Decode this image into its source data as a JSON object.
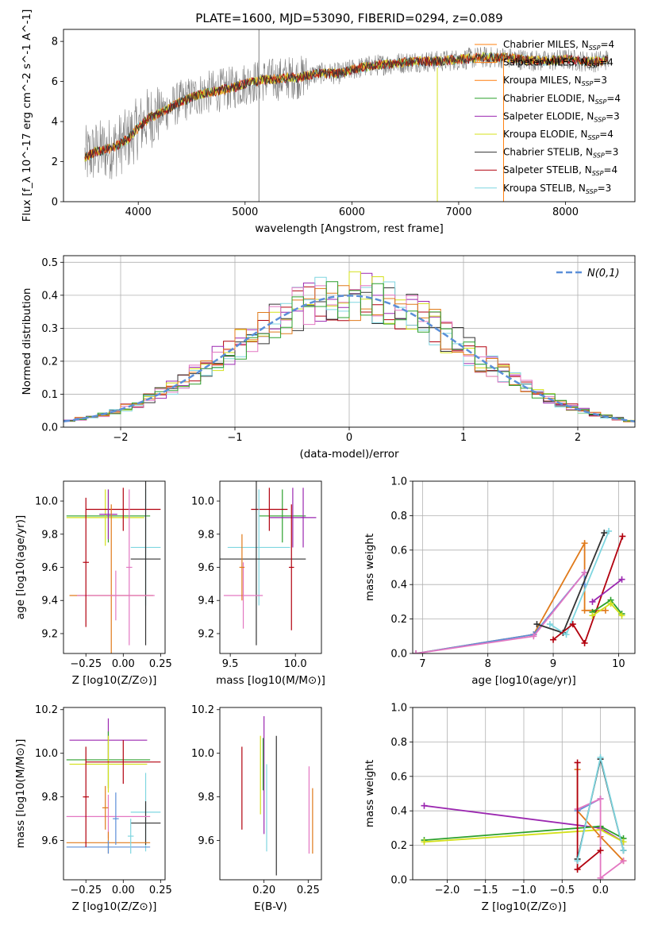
{
  "title": "PLATE=1600, MJD=53090, FIBERID=0294, z=0.089",
  "colors": {
    "Chabrier MILES": "#ff7f0e",
    "Salpeter MILES": "#ff7f0e",
    "Kroupa MILES": "#ff7f0e",
    "Chabrier ELODIE": "#2ca02c",
    "Salpeter ELODIE": "#9b27b0",
    "Kroupa ELODIE": "#d4e01a",
    "Chabrier STELIB": "#333333",
    "Salpeter STELIB": "#b2000e",
    "Kroupa STELIB": "#7fd6e0",
    "extra_pink": "#e377c2",
    "extra_blue": "#5b8fd8",
    "extra_orange": "#e07a1a",
    "data_grey": "#808080",
    "normal_curve": "#5b8fd8"
  },
  "chart_data": [
    {
      "id": "spectrum",
      "type": "line",
      "title": "PLATE=1600, MJD=53090, FIBERID=0294, z=0.089",
      "xlabel": "wavelength [Angstrom, rest frame]",
      "ylabel": "Flux [f_λ 10^-17 erg cm^-2 s^-1 A^-1]",
      "xlim": [
        3300,
        8650
      ],
      "ylim": [
        0,
        8.6
      ],
      "xticks": [
        "4000",
        "5000",
        "6000",
        "7000",
        "8000"
      ],
      "yticks": [
        "0",
        "2",
        "4",
        "6",
        "8"
      ],
      "model_knots_x": [
        3500,
        3600,
        3700,
        3800,
        3900,
        4000,
        4100,
        4200,
        4300,
        4400,
        4500,
        4600,
        4700,
        4800,
        4900,
        5000,
        5100,
        5200,
        5300,
        5400,
        5500,
        5600,
        5700,
        5800,
        5900,
        6000,
        6200,
        6400,
        6600,
        6800,
        7000,
        7200,
        7400,
        7600,
        7800,
        8000,
        8200,
        8300,
        8400
      ],
      "model_knots_y": [
        2.2,
        2.5,
        2.6,
        2.8,
        3.1,
        3.7,
        4.2,
        4.4,
        4.7,
        5.0,
        5.2,
        5.4,
        5.5,
        5.6,
        5.7,
        5.9,
        6.0,
        6.1,
        6.1,
        6.2,
        6.2,
        6.3,
        6.4,
        6.4,
        6.4,
        6.6,
        6.8,
        6.9,
        7.0,
        7.0,
        7.1,
        7.2,
        7.2,
        7.1,
        7.0,
        7.1,
        7.0,
        7.0,
        7.1
      ],
      "legend": [
        {
          "label": "Chabrier MILES, N",
          "sub": "SSP",
          "suffix": "=4"
        },
        {
          "label": "Salpeter MILES, N",
          "sub": "SSP",
          "suffix": "=4"
        },
        {
          "label": "Kroupa MILES, N",
          "sub": "SSP",
          "suffix": "=3"
        },
        {
          "label": "Chabrier ELODIE, N",
          "sub": "SSP",
          "suffix": "=4"
        },
        {
          "label": "Salpeter ELODIE, N",
          "sub": "SSP",
          "suffix": "=3"
        },
        {
          "label": "Kroupa ELODIE, N",
          "sub": "SSP",
          "suffix": "=4"
        },
        {
          "label": "Chabrier STELIB, N",
          "sub": "SSP",
          "suffix": "=3"
        },
        {
          "label": "Salpeter STELIB, N",
          "sub": "SSP",
          "suffix": "=4"
        },
        {
          "label": "Kroupa STELIB, N",
          "sub": "SSP",
          "suffix": "=3"
        }
      ],
      "legend_position": "top-right"
    },
    {
      "id": "residuals",
      "type": "histogram",
      "xlabel": "(data-model)/error",
      "ylabel": "Normed distribution",
      "xlim": [
        -2.5,
        2.5
      ],
      "ylim": [
        0,
        0.52
      ],
      "xticks": [
        "−2",
        "−1",
        "0",
        "1",
        "2"
      ],
      "yticks": [
        "0.0",
        "0.1",
        "0.2",
        "0.3",
        "0.4",
        "0.5"
      ],
      "grid": true,
      "bin_width": 0.1,
      "normal_label": "N(0,1)",
      "legend_position": "top-right"
    },
    {
      "id": "age_vs_Z",
      "type": "errorbar",
      "xlabel": "Z [log10(Z/Z⊙)]",
      "ylabel": "age [log10(age/yr)]",
      "xlim": [
        -0.4,
        0.28
      ],
      "ylim": [
        9.08,
        10.12
      ],
      "xticks": [
        "−0.25",
        "0.00",
        "0.25"
      ],
      "yticks": [
        "9.2",
        "9.4",
        "9.6",
        "9.8",
        "10.0"
      ],
      "bars": [
        {
          "x": -0.1,
          "y": 9.91,
          "xerr": 0.28,
          "yerr": 0.16,
          "color": "Chabrier ELODIE"
        },
        {
          "x": -0.12,
          "y": 9.9,
          "xerr": 0.26,
          "yerr": 0.17,
          "color": "Kroupa ELODIE"
        },
        {
          "x": 0.0,
          "y": 9.95,
          "xerr": 0.25,
          "yerr": 0.13,
          "color": "Salpeter STELIB"
        },
        {
          "x": -0.1,
          "y": 9.92,
          "xerr": 0.06,
          "yerr": 0.15,
          "color": "Salpeter ELODIE"
        },
        {
          "x": 0.15,
          "y": 9.72,
          "xerr": 0.1,
          "yerr": 0.35,
          "color": "Kroupa STELIB"
        },
        {
          "x": 0.15,
          "y": 9.65,
          "xerr": 0.1,
          "yerr": 0.52,
          "color": "Chabrier STELIB"
        },
        {
          "x": -0.08,
          "y": 9.43,
          "xerr": 0.28,
          "yerr": 0.55,
          "color": "extra_orange"
        },
        {
          "x": -0.05,
          "y": 9.43,
          "xerr": 0.26,
          "yerr": 0.15,
          "color": "extra_pink"
        },
        {
          "x": -0.25,
          "y": 9.63,
          "xerr": 0.02,
          "yerr": 0.39,
          "color": "Salpeter STELIB"
        },
        {
          "x": 0.04,
          "y": 9.6,
          "xerr": 0.02,
          "yerr": 0.47,
          "color": "extra_pink"
        }
      ]
    },
    {
      "id": "age_vs_mass",
      "type": "errorbar",
      "xlabel": "mass [log10(M/M⊙)]",
      "ylabel": "",
      "xlim": [
        9.42,
        10.2
      ],
      "ylim": [
        9.08,
        10.12
      ],
      "xticks": [
        "9.5",
        "10.0"
      ],
      "yticks": [
        "9.2",
        "9.4",
        "9.6",
        "9.8",
        "10.0"
      ],
      "bars": [
        {
          "x": 9.9,
          "y": 9.91,
          "xerr": 0.18,
          "yerr": 0.16,
          "color": "Chabrier ELODIE"
        },
        {
          "x": 9.98,
          "y": 9.9,
          "xerr": 0.18,
          "yerr": 0.18,
          "color": "Salpeter ELODIE"
        },
        {
          "x": 9.8,
          "y": 9.95,
          "xerr": 0.14,
          "yerr": 0.13,
          "color": "Salpeter STELIB"
        },
        {
          "x": 9.72,
          "y": 9.72,
          "xerr": 0.24,
          "yerr": 0.35,
          "color": "Kroupa STELIB"
        },
        {
          "x": 9.7,
          "y": 9.65,
          "xerr": 0.38,
          "yerr": 0.52,
          "color": "Chabrier STELIB"
        },
        {
          "x": 9.6,
          "y": 9.43,
          "xerr": 0.15,
          "yerr": 0.2,
          "color": "extra_pink"
        },
        {
          "x": 9.59,
          "y": 9.6,
          "xerr": 0.02,
          "yerr": 0.2,
          "color": "extra_orange"
        },
        {
          "x": 10.06,
          "y": 9.9,
          "xerr": 0.02,
          "yerr": 0.18,
          "color": "Salpeter ELODIE"
        },
        {
          "x": 9.97,
          "y": 9.6,
          "xerr": 0.02,
          "yerr": 0.38,
          "color": "Salpeter STELIB"
        }
      ]
    },
    {
      "id": "mw_vs_age",
      "type": "line",
      "xlabel": "age [log10(age/yr)]",
      "ylabel": "mass weight",
      "xlim": [
        6.85,
        10.25
      ],
      "ylim": [
        0,
        1.0
      ],
      "xticks": [
        "7",
        "8",
        "9",
        "10"
      ],
      "yticks": [
        "0.0",
        "0.2",
        "0.4",
        "0.6",
        "0.8",
        "1.0"
      ],
      "grid": true,
      "series": [
        {
          "color": "extra_orange",
          "x": [
            6.9,
            8.7,
            9.48,
            9.48,
            9.8
          ],
          "y": [
            0.0,
            0.11,
            0.64,
            0.25,
            0.25
          ]
        },
        {
          "color": "extra_blue",
          "x": [
            6.9,
            8.7,
            9.48,
            9.48
          ],
          "y": [
            0.0,
            0.11,
            0.47,
            0.4
          ]
        },
        {
          "color": "extra_pink",
          "x": [
            6.9,
            8.7,
            9.48
          ],
          "y": [
            0.0,
            0.1,
            0.47
          ]
        },
        {
          "color": "Chabrier STELIB",
          "x": [
            8.75,
            9.15,
            9.78
          ],
          "y": [
            0.17,
            0.12,
            0.7
          ]
        },
        {
          "color": "Kroupa STELIB",
          "x": [
            8.95,
            9.2,
            9.85
          ],
          "y": [
            0.17,
            0.11,
            0.71
          ]
        },
        {
          "color": "Salpeter STELIB",
          "x": [
            9.0,
            9.3,
            9.48,
            10.06
          ],
          "y": [
            0.08,
            0.17,
            0.06,
            0.68
          ]
        },
        {
          "color": "Salpeter ELODIE",
          "x": [
            9.6,
            10.05
          ],
          "y": [
            0.3,
            0.43
          ]
        },
        {
          "color": "Chabrier ELODIE",
          "x": [
            9.6,
            9.88,
            10.05
          ],
          "y": [
            0.24,
            0.31,
            0.23
          ]
        },
        {
          "color": "Kroupa ELODIE",
          "x": [
            9.6,
            9.88,
            10.05
          ],
          "y": [
            0.22,
            0.29,
            0.22
          ]
        }
      ]
    },
    {
      "id": "mass_vs_Z",
      "type": "errorbar",
      "xlabel": "Z [log10(Z/Z⊙)]",
      "ylabel": "mass [log10(M/M⊙)]",
      "xlim": [
        -0.4,
        0.28
      ],
      "ylim": [
        9.42,
        10.21
      ],
      "xticks": [
        "−0.25",
        "0.00",
        "0.25"
      ],
      "yticks": [
        "9.6",
        "9.8",
        "10.0",
        "10.2"
      ],
      "bars": [
        {
          "x": -0.1,
          "y": 10.06,
          "xerr": 0.26,
          "yerr": 0.1,
          "color": "Salpeter ELODIE"
        },
        {
          "x": -0.1,
          "y": 9.97,
          "xerr": 0.28,
          "yerr": 0.13,
          "color": "Chabrier ELODIE"
        },
        {
          "x": -0.1,
          "y": 9.95,
          "xerr": 0.26,
          "yerr": 0.13,
          "color": "Kroupa ELODIE"
        },
        {
          "x": 0.0,
          "y": 9.96,
          "xerr": 0.25,
          "yerr": 0.1,
          "color": "Salpeter STELIB"
        },
        {
          "x": 0.15,
          "y": 9.73,
          "xerr": 0.1,
          "yerr": 0.18,
          "color": "Kroupa STELIB"
        },
        {
          "x": 0.15,
          "y": 9.68,
          "xerr": 0.1,
          "yerr": 0.1,
          "color": "Chabrier STELIB"
        },
        {
          "x": -0.1,
          "y": 9.71,
          "xerr": 0.28,
          "yerr": 0.1,
          "color": "extra_pink"
        },
        {
          "x": -0.1,
          "y": 9.59,
          "xerr": 0.28,
          "yerr": 0.05,
          "color": "extra_orange"
        },
        {
          "x": -0.1,
          "y": 9.57,
          "xerr": 0.28,
          "yerr": 0.03,
          "color": "extra_blue"
        },
        {
          "x": -0.25,
          "y": 9.8,
          "xerr": 0.02,
          "yerr": 0.23,
          "color": "Salpeter STELIB"
        },
        {
          "x": -0.12,
          "y": 9.75,
          "xerr": 0.02,
          "yerr": 0.1,
          "color": "extra_orange"
        },
        {
          "x": -0.05,
          "y": 9.7,
          "xerr": 0.02,
          "yerr": 0.12,
          "color": "extra_blue"
        },
        {
          "x": 0.05,
          "y": 9.62,
          "xerr": 0.02,
          "yerr": 0.08,
          "color": "Kroupa STELIB"
        }
      ]
    },
    {
      "id": "mass_vs_ebv",
      "type": "errorbar",
      "xlabel": "E(B-V)",
      "ylabel": "",
      "xlim": [
        0.15,
        0.265
      ],
      "ylim": [
        9.42,
        10.21
      ],
      "xticks": [
        "0.20",
        "0.25"
      ],
      "yticks": [
        "9.6",
        "9.8",
        "10.0",
        "10.2"
      ],
      "bars": [
        {
          "x": 0.175,
          "y": 9.84,
          "yerr": 0.19,
          "color": "Salpeter STELIB"
        },
        {
          "x": 0.196,
          "y": 9.9,
          "yerr": 0.18,
          "color": "Kroupa ELODIE"
        },
        {
          "x": 0.2,
          "y": 9.9,
          "yerr": 0.27,
          "color": "Salpeter ELODIE"
        },
        {
          "x": 0.199,
          "y": 9.95,
          "yerr": 0.12,
          "color": "Chabrier ELODIE"
        },
        {
          "x": 0.203,
          "y": 9.75,
          "yerr": 0.2,
          "color": "Kroupa STELIB"
        },
        {
          "x": 0.214,
          "y": 9.76,
          "yerr": 0.32,
          "color": "Chabrier STELIB"
        },
        {
          "x": 0.251,
          "y": 9.74,
          "yerr": 0.2,
          "color": "extra_pink"
        },
        {
          "x": 0.255,
          "y": 9.69,
          "yerr": 0.15,
          "color": "extra_orange"
        }
      ]
    },
    {
      "id": "mw_vs_Z",
      "type": "line",
      "xlabel": "Z [log10(Z/Z⊙)]",
      "ylabel": "mass weight",
      "xlim": [
        -2.45,
        0.45
      ],
      "ylim": [
        0,
        1.0
      ],
      "xticks": [
        "−2.0",
        "−1.5",
        "−1.0",
        "−0.5",
        "0.0"
      ],
      "yticks": [
        "0.0",
        "0.2",
        "0.4",
        "0.6",
        "0.8",
        "1.0"
      ],
      "grid": true,
      "series": [
        {
          "color": "Salpeter ELODIE",
          "x": [
            -2.3,
            0.0,
            0.3
          ],
          "y": [
            0.43,
            0.3,
            0.22
          ]
        },
        {
          "color": "Chabrier ELODIE",
          "x": [
            -2.3,
            0.0,
            0.3
          ],
          "y": [
            0.23,
            0.31,
            0.24
          ]
        },
        {
          "color": "Kroupa ELODIE",
          "x": [
            -2.3,
            0.0,
            0.3
          ],
          "y": [
            0.22,
            0.29,
            0.22
          ]
        },
        {
          "color": "extra_orange",
          "x": [
            -0.3,
            -0.3,
            0.0,
            0.3
          ],
          "y": [
            0.64,
            0.4,
            0.25,
            0.11
          ]
        },
        {
          "color": "extra_blue",
          "x": [
            -0.3,
            0.0
          ],
          "y": [
            0.4,
            0.47
          ]
        },
        {
          "color": "extra_pink",
          "x": [
            -0.3,
            0.0,
            0.0,
            0.3
          ],
          "y": [
            0.41,
            0.47,
            0.01,
            0.11
          ]
        },
        {
          "color": "Salpeter STELIB",
          "x": [
            -0.3,
            -0.3,
            0.0
          ],
          "y": [
            0.68,
            0.06,
            0.17
          ]
        },
        {
          "color": "Chabrier STELIB",
          "x": [
            -0.3,
            0.0,
            0.3
          ],
          "y": [
            0.12,
            0.7,
            0.17
          ]
        },
        {
          "color": "Kroupa STELIB",
          "x": [
            -0.3,
            0.0,
            0.3
          ],
          "y": [
            0.11,
            0.71,
            0.17
          ]
        }
      ]
    }
  ]
}
